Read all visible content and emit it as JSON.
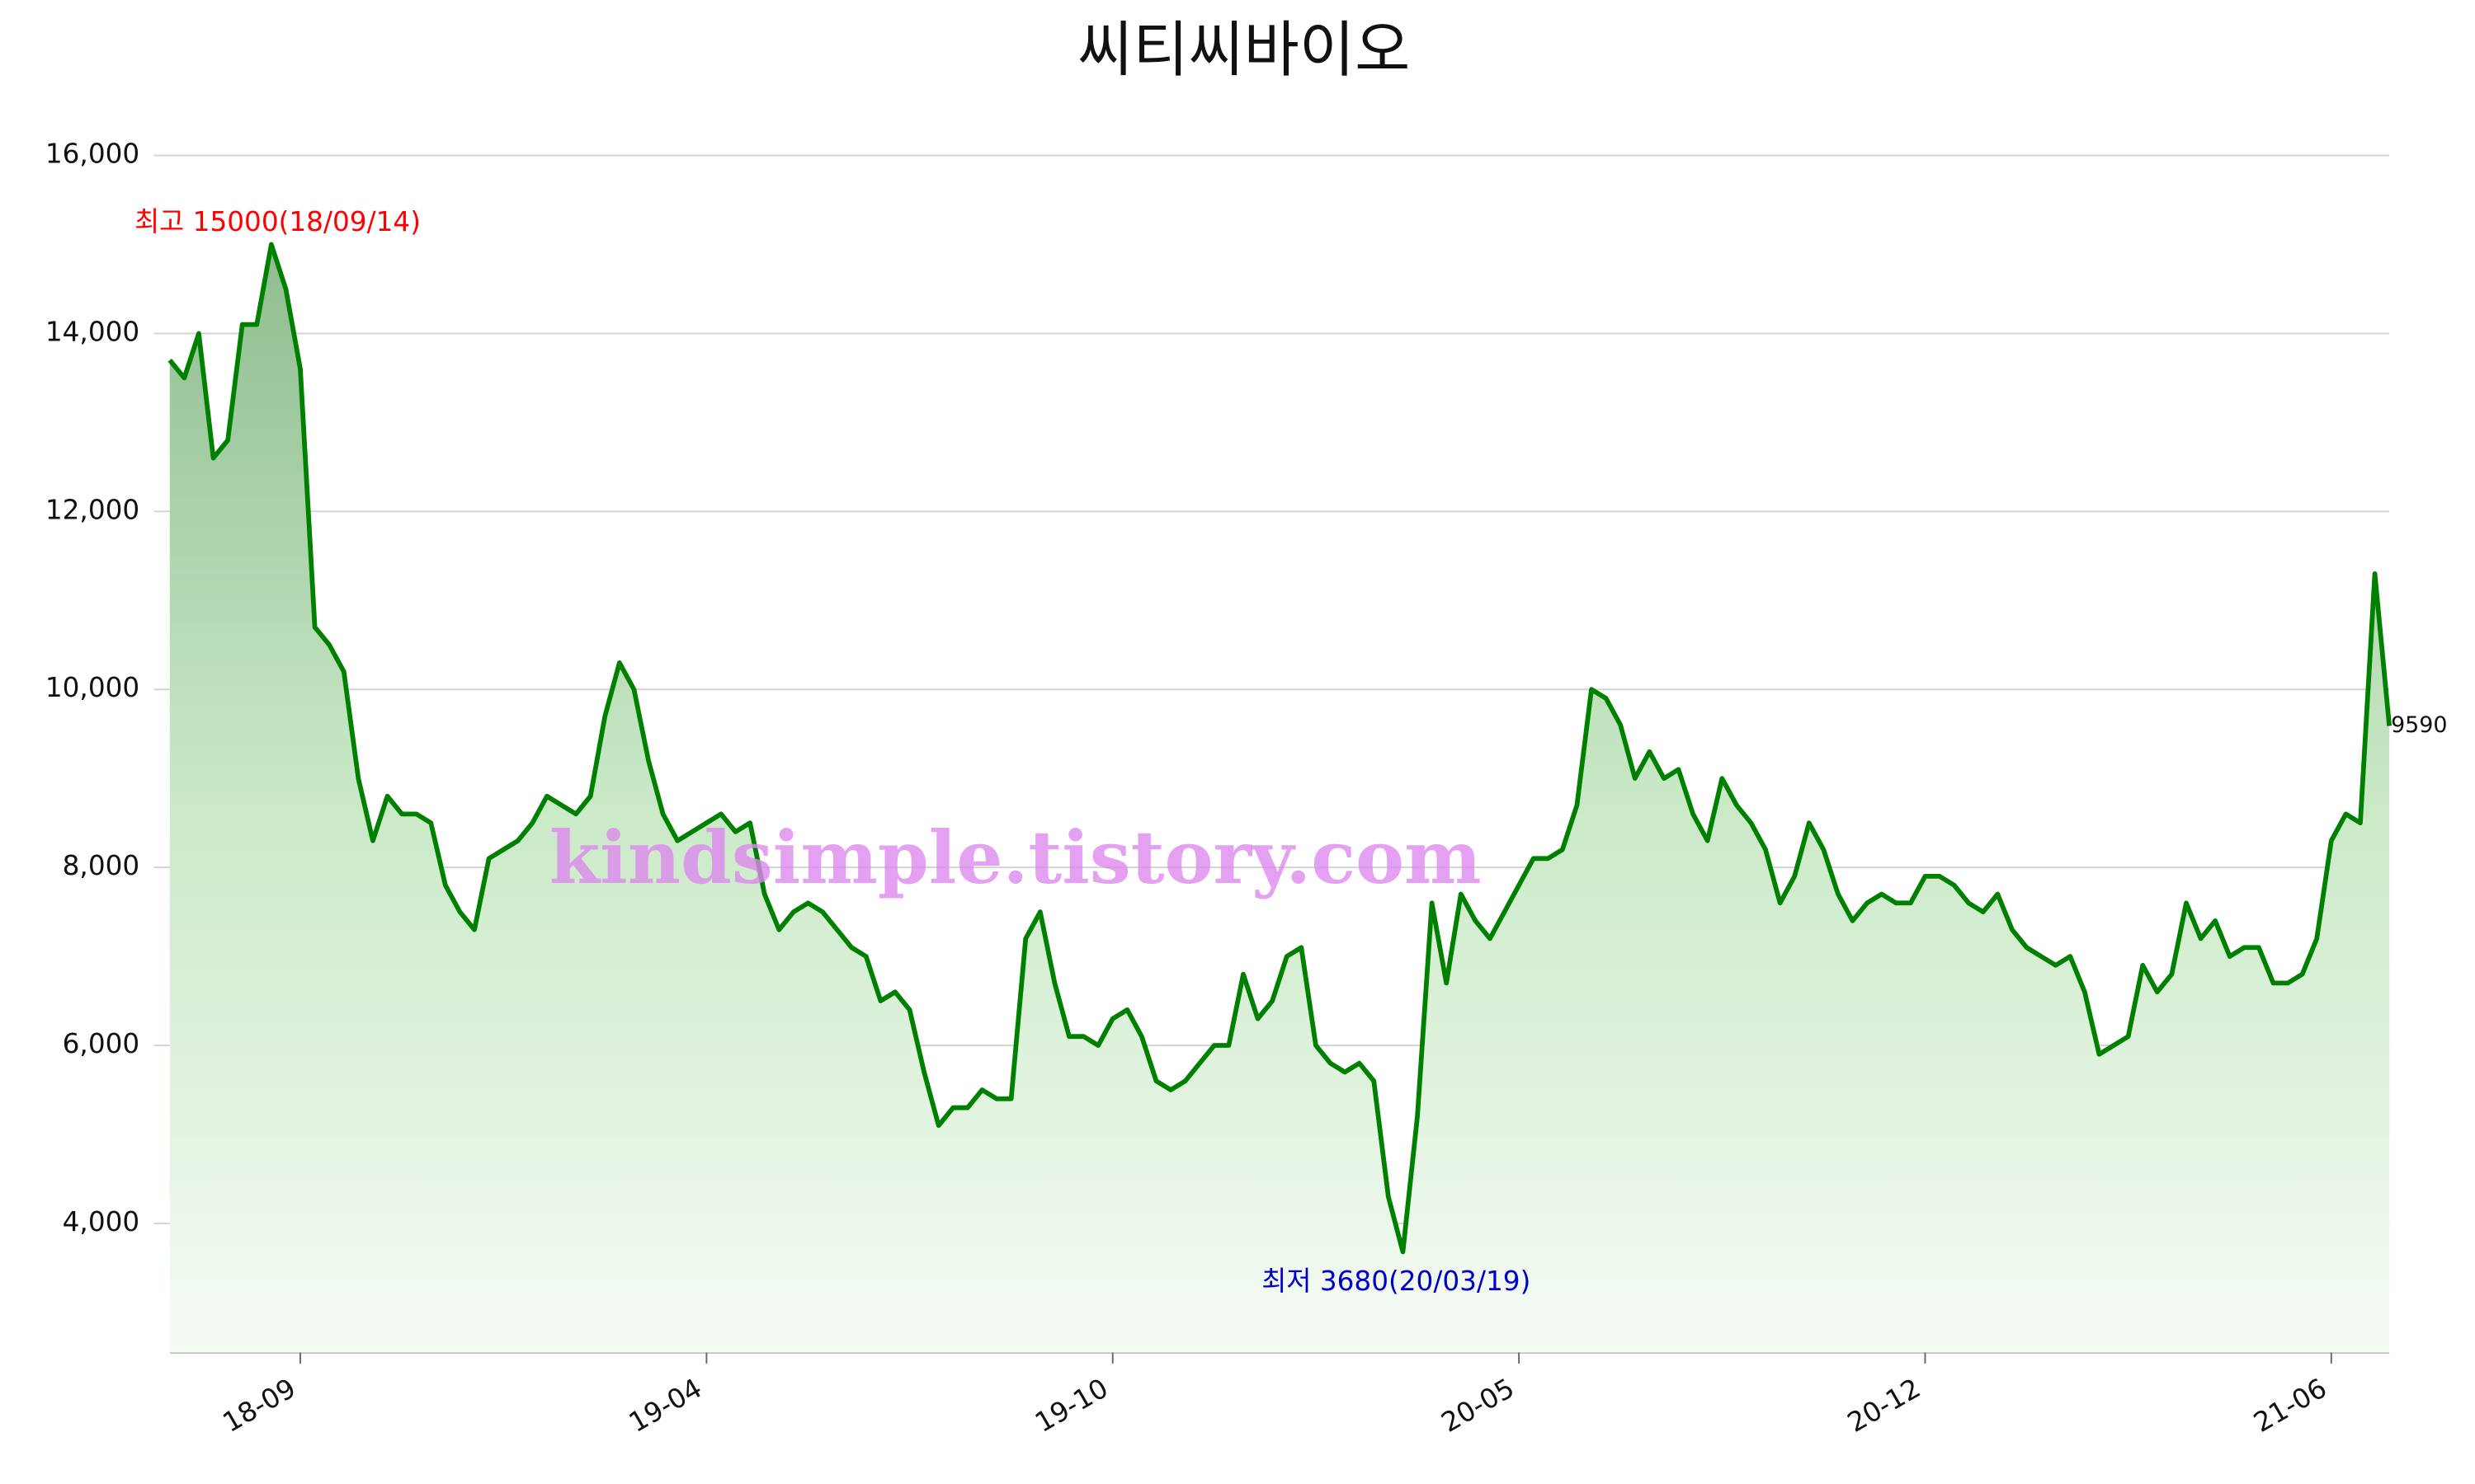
{
  "chart_data": {
    "type": "line",
    "title": "씨티씨바이오",
    "watermark": "kindsimple.tistory.com",
    "categories": [
      null,
      null,
      null,
      null,
      null,
      null,
      null,
      null,
      null,
      "18-09",
      null,
      null,
      null,
      null,
      null,
      null,
      null,
      null,
      null,
      null,
      null,
      null,
      null,
      null,
      null,
      null,
      null,
      null,
      null,
      null,
      null,
      null,
      null,
      null,
      null,
      null,
      null,
      "19-04",
      null,
      null,
      null,
      null,
      null,
      null,
      null,
      null,
      null,
      null,
      null,
      null,
      null,
      null,
      null,
      null,
      null,
      null,
      null,
      null,
      null,
      null,
      null,
      null,
      null,
      null,
      null,
      "19-10",
      null,
      null,
      null,
      null,
      null,
      null,
      null,
      null,
      null,
      null,
      null,
      null,
      null,
      null,
      null,
      null,
      null,
      null,
      null,
      null,
      null,
      null,
      null,
      null,
      null,
      null,
      null,
      "20-05",
      null,
      null,
      null,
      null,
      null,
      null,
      null,
      null,
      null,
      null,
      null,
      null,
      null,
      null,
      null,
      null,
      null,
      null,
      null,
      null,
      null,
      null,
      null,
      null,
      null,
      null,
      null,
      "20-12",
      null,
      null,
      null,
      null,
      null,
      null,
      null,
      null,
      null,
      null,
      null,
      null,
      null,
      null,
      null,
      null,
      null,
      null,
      null,
      null,
      null,
      null,
      null,
      null,
      null,
      null,
      null,
      "21-06",
      null,
      null,
      null,
      null
    ],
    "series": [
      {
        "color": "#008000",
        "values": [
          13700,
          13500,
          14000,
          12600,
          12800,
          14100,
          14100,
          15000,
          14500,
          13600,
          10700,
          10500,
          10200,
          9000,
          8300,
          8800,
          8600,
          8600,
          8500,
          7800,
          7500,
          7300,
          8100,
          8200,
          8300,
          8500,
          8800,
          8700,
          8600,
          8800,
          9700,
          10300,
          10000,
          9200,
          8600,
          8300,
          8400,
          8500,
          8600,
          8400,
          8500,
          7700,
          7300,
          7500,
          7600,
          7500,
          7300,
          7100,
          7000,
          6500,
          6600,
          6400,
          5700,
          5100,
          5300,
          5300,
          5500,
          5400,
          5400,
          7200,
          7500,
          6700,
          6100,
          6100,
          6000,
          6300,
          6400,
          6100,
          5600,
          5500,
          5600,
          5800,
          6000,
          6000,
          6800,
          6300,
          6500,
          7000,
          7100,
          6000,
          5800,
          5700,
          5800,
          5600,
          4300,
          3680,
          5200,
          7600,
          6700,
          7700,
          7400,
          7200,
          7500,
          7800,
          8100,
          8100,
          8200,
          8700,
          10000,
          9900,
          9600,
          9000,
          9300,
          9000,
          9100,
          8600,
          8300,
          9000,
          8700,
          8500,
          8200,
          7600,
          7900,
          8500,
          8200,
          7700,
          7400,
          7600,
          7700,
          7600,
          7600,
          7900,
          7900,
          7800,
          7600,
          7500,
          7700,
          7300,
          7100,
          7000,
          6900,
          7000,
          6600,
          5900,
          6000,
          6100,
          6900,
          6600,
          6800,
          7600,
          7200,
          7400,
          7000,
          7100,
          7100,
          6700,
          6700,
          6800,
          7200,
          8300,
          8600,
          8500,
          11300,
          9590
        ]
      }
    ],
    "annotations": [
      {
        "text": "최고 15000(18/09/14)",
        "color": "#ff0000"
      },
      {
        "text": "최저 3680(20/03/19)",
        "color": "#0000cc"
      }
    ],
    "ylim": [
      2550,
      16500
    ],
    "yticks": [
      {
        "value": 4000,
        "label": "4,000"
      },
      {
        "value": 6000,
        "label": "6,000"
      },
      {
        "value": 8000,
        "label": "8,000"
      },
      {
        "value": 10000,
        "label": "10,000"
      },
      {
        "value": 12000,
        "label": "12,000"
      },
      {
        "value": 14000,
        "label": "14,000"
      },
      {
        "value": 16000,
        "label": "16,000"
      }
    ],
    "grid": true
  }
}
